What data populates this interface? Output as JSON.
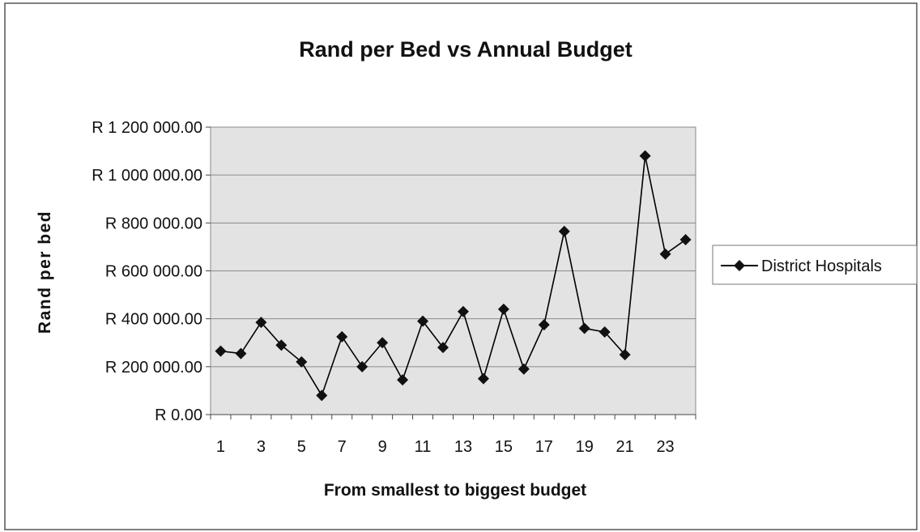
{
  "chart_data": {
    "type": "line",
    "title": "Rand per Bed vs Annual Budget",
    "xlabel": "From smallest to biggest budget",
    "ylabel": "Rand per bed",
    "ylim": [
      0,
      1200000
    ],
    "y_ticks": [
      {
        "value": 0,
        "label": "R 0.00"
      },
      {
        "value": 200000,
        "label": "R 200 000.00"
      },
      {
        "value": 400000,
        "label": "R 400 000.00"
      },
      {
        "value": 600000,
        "label": "R 600 000.00"
      },
      {
        "value": 800000,
        "label": "R 800 000.00"
      },
      {
        "value": 1000000,
        "label": "R 1 000 000.00"
      },
      {
        "value": 1200000,
        "label": "R 1 200 000.00"
      }
    ],
    "categories": [
      1,
      2,
      3,
      4,
      5,
      6,
      7,
      8,
      9,
      10,
      11,
      12,
      13,
      14,
      15,
      16,
      17,
      18,
      19,
      20,
      21,
      22,
      23,
      24
    ],
    "x_tick_labels": [
      "1",
      "",
      "3",
      "",
      "5",
      "",
      "7",
      "",
      "9",
      "",
      "11",
      "",
      "13",
      "",
      "15",
      "",
      "17",
      "",
      "19",
      "",
      "21",
      "",
      "23",
      ""
    ],
    "series": [
      {
        "name": "District Hospitals",
        "color": "#000000",
        "marker": "diamond",
        "values": [
          265000,
          255000,
          385000,
          290000,
          220000,
          80000,
          325000,
          200000,
          300000,
          145000,
          390000,
          280000,
          430000,
          150000,
          440000,
          190000,
          375000,
          765000,
          360000,
          345000,
          250000,
          1080000,
          670000,
          730000
        ]
      }
    ],
    "grid": true,
    "plot_background": "#e3e3e3",
    "legend_position": "right"
  }
}
